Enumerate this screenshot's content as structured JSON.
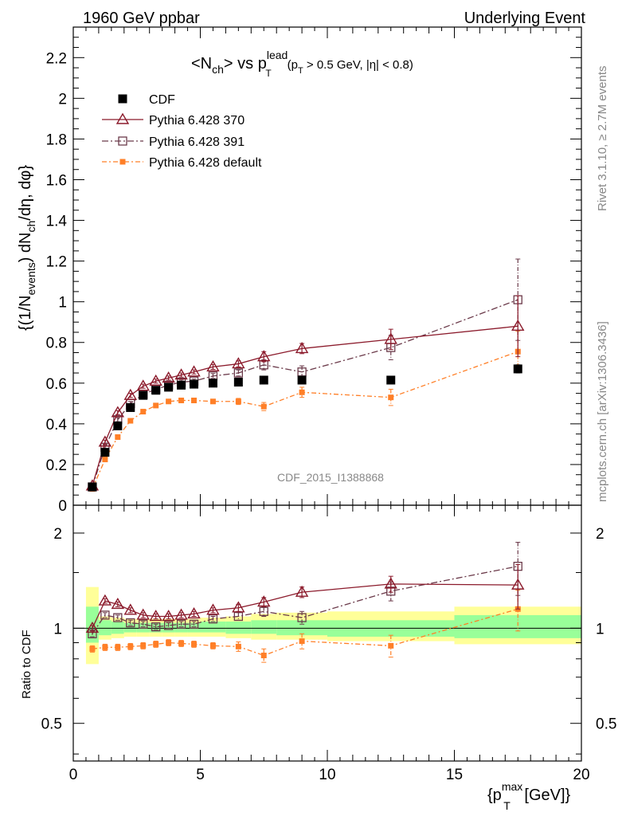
{
  "header": {
    "left": "1960 GeV ppbar",
    "right": "Underlying Event"
  },
  "plot_title": {
    "main": "<N",
    "main_sub": "ch",
    "vs": "> vs p",
    "vs_sup": "lead",
    "vs_sub": "T",
    "cut_open": "(p",
    "cut_sub": "T",
    "cut_rest": " > 0.5 GeV, |η| < 0.8)"
  },
  "side_text": {
    "rivet": "Rivet 3.1.10, ≥ 2.7M events",
    "mcplots": "mcplots.cern.ch [arXiv:1306.3436]"
  },
  "watermark": "CDF_2015_I1388868",
  "y_label_top": {
    "p1": "{(1/N",
    "p1_sub": "events",
    "p2": ") dN",
    "p2_sub": "ch",
    "p3": "/dη, dφ}"
  },
  "y_label_bottom": "Ratio to CDF",
  "x_label": {
    "p1": "{p",
    "sup": "max",
    "sub": "T",
    "p2": " [GeV]}"
  },
  "chart_data": [
    {
      "type": "line",
      "xlim": [
        0,
        20
      ],
      "ylim": [
        0,
        2.35
      ],
      "y_ticks": [
        "0",
        "0.2",
        "0.4",
        "0.6",
        "0.8",
        "1",
        "1.2",
        "1.4",
        "1.6",
        "1.8",
        "2",
        "2.2"
      ],
      "x_ticks": [
        "0",
        "5",
        "10",
        "15",
        "20"
      ],
      "legend_position": "top-left",
      "series": [
        {
          "name": "CDF",
          "color": "#000000",
          "marker": "filled-square",
          "x": [
            0.75,
            1.25,
            1.75,
            2.25,
            2.75,
            3.25,
            3.75,
            4.25,
            4.75,
            5.5,
            6.5,
            7.5,
            9.0,
            12.5,
            17.5
          ],
          "y": [
            0.09,
            0.26,
            0.39,
            0.48,
            0.54,
            0.565,
            0.58,
            0.59,
            0.595,
            0.6,
            0.605,
            0.615,
            0.615,
            0.615,
            0.67
          ],
          "err": [
            0.01,
            0.01,
            0.01,
            0.01,
            0.01,
            0.01,
            0.01,
            0.01,
            0.01,
            0.01,
            0.01,
            0.01,
            0.01,
            0.01,
            0.02
          ]
        },
        {
          "name": "Pythia 6.428 370",
          "color": "#8b1a2b",
          "marker": "open-triangle",
          "x": [
            0.75,
            1.25,
            1.75,
            2.25,
            2.75,
            3.25,
            3.75,
            4.25,
            4.75,
            5.5,
            6.5,
            7.5,
            9.0,
            12.5,
            17.5
          ],
          "y": [
            0.095,
            0.31,
            0.455,
            0.54,
            0.585,
            0.61,
            0.625,
            0.64,
            0.655,
            0.68,
            0.695,
            0.73,
            0.77,
            0.815,
            0.88
          ],
          "err": [
            0.005,
            0.01,
            0.01,
            0.01,
            0.01,
            0.01,
            0.01,
            0.01,
            0.01,
            0.012,
            0.015,
            0.025,
            0.025,
            0.05,
            0.15
          ]
        },
        {
          "name": "Pythia 6.428 391",
          "color": "#6b3a4a",
          "marker": "open-square",
          "x": [
            0.75,
            1.25,
            1.75,
            2.25,
            2.75,
            3.25,
            3.75,
            4.25,
            4.75,
            5.5,
            6.5,
            7.5,
            9.0,
            12.5,
            17.5
          ],
          "y": [
            0.09,
            0.285,
            0.42,
            0.5,
            0.545,
            0.57,
            0.59,
            0.605,
            0.61,
            0.635,
            0.65,
            0.69,
            0.655,
            0.775,
            1.01
          ],
          "err": [
            0.005,
            0.01,
            0.01,
            0.01,
            0.01,
            0.01,
            0.01,
            0.01,
            0.01,
            0.012,
            0.015,
            0.025,
            0.03,
            0.06,
            0.2
          ]
        },
        {
          "name": "Pythia 6.428 default",
          "color": "#ff7f27",
          "marker": "filled-square-small",
          "x": [
            0.75,
            1.25,
            1.75,
            2.25,
            2.75,
            3.25,
            3.75,
            4.25,
            4.75,
            5.5,
            6.5,
            7.5,
            9.0,
            12.5,
            17.5
          ],
          "y": [
            0.08,
            0.225,
            0.335,
            0.415,
            0.46,
            0.49,
            0.51,
            0.515,
            0.515,
            0.51,
            0.51,
            0.485,
            0.555,
            0.53,
            0.755
          ],
          "err": [
            0.005,
            0.01,
            0.01,
            0.01,
            0.01,
            0.01,
            0.01,
            0.01,
            0.01,
            0.01,
            0.015,
            0.02,
            0.025,
            0.04,
            0.1
          ]
        }
      ]
    },
    {
      "type": "line",
      "ylabel": "Ratio to CDF",
      "xlabel": "{p_T^max [GeV]}",
      "xlim": [
        0,
        20
      ],
      "ylim": [
        0.38,
        2.45
      ],
      "y_scale": "log",
      "y_ticks": [
        "0.5",
        "1",
        "2"
      ],
      "x_ticks": [
        "0",
        "5",
        "10",
        "15",
        "20"
      ],
      "bands": {
        "bins": [
          0.5,
          1.0,
          1.5,
          2.0,
          2.5,
          3.0,
          3.5,
          4.0,
          4.5,
          5.0,
          6.0,
          7.0,
          8.0,
          10.0,
          15.0,
          20.0
        ],
        "green": [
          [
            0.9,
            1.17
          ],
          [
            0.95,
            1.06
          ],
          [
            0.96,
            1.05
          ],
          [
            0.97,
            1.04
          ],
          [
            0.97,
            1.04
          ],
          [
            0.97,
            1.04
          ],
          [
            0.97,
            1.04
          ],
          [
            0.97,
            1.04
          ],
          [
            0.97,
            1.04
          ],
          [
            0.97,
            1.05
          ],
          [
            0.96,
            1.05
          ],
          [
            0.96,
            1.06
          ],
          [
            0.95,
            1.06
          ],
          [
            0.94,
            1.06
          ],
          [
            0.93,
            1.1
          ]
        ],
        "yellow": [
          [
            0.77,
            1.35
          ],
          [
            0.92,
            1.09
          ],
          [
            0.93,
            1.08
          ],
          [
            0.94,
            1.07
          ],
          [
            0.94,
            1.07
          ],
          [
            0.94,
            1.07
          ],
          [
            0.94,
            1.07
          ],
          [
            0.94,
            1.07
          ],
          [
            0.94,
            1.07
          ],
          [
            0.94,
            1.08
          ],
          [
            0.93,
            1.09
          ],
          [
            0.92,
            1.11
          ],
          [
            0.92,
            1.12
          ],
          [
            0.91,
            1.13
          ],
          [
            0.89,
            1.17
          ]
        ]
      },
      "series": [
        {
          "name": "Pythia 6.428 370",
          "color": "#8b1a2b",
          "marker": "open-triangle",
          "x": [
            0.75,
            1.25,
            1.75,
            2.25,
            2.75,
            3.25,
            3.75,
            4.25,
            4.75,
            5.5,
            6.5,
            7.5,
            9.0,
            12.5,
            17.5
          ],
          "y": [
            1.0,
            1.22,
            1.19,
            1.14,
            1.1,
            1.09,
            1.09,
            1.1,
            1.11,
            1.14,
            1.16,
            1.21,
            1.3,
            1.38,
            1.37
          ],
          "err": [
            0.02,
            0.02,
            0.02,
            0.02,
            0.02,
            0.02,
            0.02,
            0.02,
            0.02,
            0.02,
            0.03,
            0.04,
            0.05,
            0.08,
            0.22
          ]
        },
        {
          "name": "Pythia 6.428 391",
          "color": "#6b3a4a",
          "marker": "open-square",
          "x": [
            0.75,
            1.25,
            1.75,
            2.25,
            2.75,
            3.25,
            3.75,
            4.25,
            4.75,
            5.5,
            6.5,
            7.5,
            9.0,
            12.5,
            17.5
          ],
          "y": [
            0.96,
            1.1,
            1.08,
            1.04,
            1.03,
            1.01,
            1.02,
            1.03,
            1.03,
            1.07,
            1.09,
            1.13,
            1.08,
            1.31,
            1.57
          ],
          "err": [
            0.02,
            0.02,
            0.02,
            0.02,
            0.02,
            0.02,
            0.02,
            0.02,
            0.02,
            0.02,
            0.03,
            0.04,
            0.05,
            0.09,
            0.3
          ]
        },
        {
          "name": "Pythia 6.428 default",
          "color": "#ff7f27",
          "marker": "filled-square-small",
          "x": [
            0.75,
            1.25,
            1.75,
            2.25,
            2.75,
            3.25,
            3.75,
            4.25,
            4.75,
            5.5,
            6.5,
            7.5,
            9.0,
            12.5,
            17.5
          ],
          "y": [
            0.86,
            0.87,
            0.87,
            0.875,
            0.88,
            0.89,
            0.9,
            0.895,
            0.89,
            0.88,
            0.875,
            0.82,
            0.91,
            0.88,
            1.15
          ],
          "err": [
            0.02,
            0.02,
            0.02,
            0.02,
            0.02,
            0.02,
            0.02,
            0.02,
            0.02,
            0.02,
            0.03,
            0.04,
            0.05,
            0.07,
            0.17
          ]
        }
      ]
    }
  ]
}
